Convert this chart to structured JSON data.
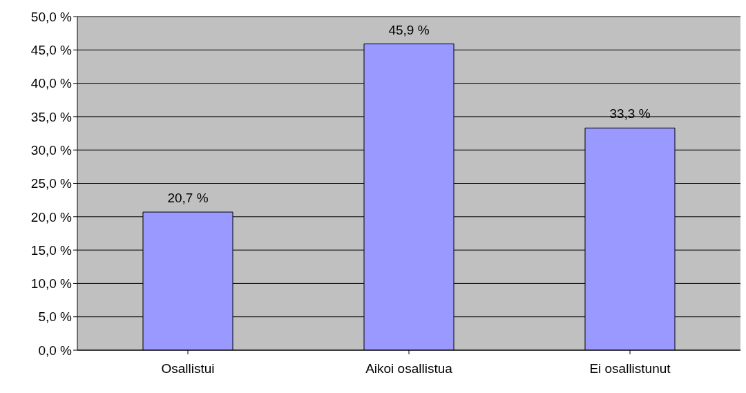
{
  "chart_data": {
    "type": "bar",
    "categories": [
      "Osallistui",
      "Aikoi osallistua",
      "Ei osallistunut"
    ],
    "values": [
      20.7,
      45.9,
      33.3
    ],
    "color": "#9999ff",
    "value_labels": [
      "20,7 %",
      "45,9 %",
      "33,3 %"
    ],
    "ylim": [
      0,
      50
    ],
    "yticks": [
      {
        "value": 0,
        "label": "0,0 %"
      },
      {
        "value": 5,
        "label": "5,0 %"
      },
      {
        "value": 10,
        "label": "10,0 %"
      },
      {
        "value": 15,
        "label": "15,0 %"
      },
      {
        "value": 20,
        "label": "20,0 %"
      },
      {
        "value": 25,
        "label": "25,0 %"
      },
      {
        "value": 30,
        "label": "30,0 %"
      },
      {
        "value": 35,
        "label": "35,0 %"
      },
      {
        "value": 40,
        "label": "40,0 %"
      },
      {
        "value": 45,
        "label": "45,0 %"
      },
      {
        "value": 50,
        "label": "50,0 %"
      }
    ],
    "grid": "y",
    "legend": false
  }
}
